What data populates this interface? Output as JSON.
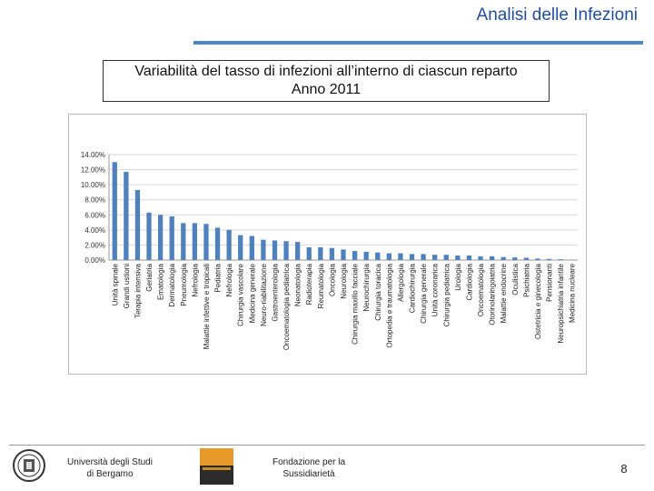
{
  "header": {
    "title": "Analisi delle Infezioni"
  },
  "slide": {
    "title_line1": "Variabilità del tasso di infezioni all’interno di ciascun reparto",
    "title_line2": "Anno 2011"
  },
  "footer": {
    "university_line1": "Università degli Studi",
    "university_line2": "di Bergamo",
    "foundation_line1": "Fondazione per la",
    "foundation_line2": "Sussidiarietà",
    "page_number": "8"
  },
  "colors": {
    "bar": "#4f81bd",
    "accent": "#1f4e9e",
    "rule": "#4a86c8"
  },
  "chart_data": {
    "type": "bar",
    "title": "",
    "xlabel": "",
    "ylabel": "",
    "ylim": [
      0,
      14
    ],
    "yticks": [
      0,
      2,
      4,
      6,
      8,
      10,
      12,
      14
    ],
    "ytick_labels": [
      "0.00%",
      "2.00%",
      "4.00%",
      "6.00%",
      "8.00%",
      "10.00%",
      "12.00%",
      "14.00%"
    ],
    "grid": true,
    "categories": [
      "Unità spinale",
      "Grandi ustioni",
      "Terapia intensiva",
      "Geriatria",
      "Ematologia",
      "Dermatologia",
      "Pneumologia",
      "Nefrologia",
      "Malattie infettive e tropicali",
      "Pediatria",
      "Nefrologia",
      "Chirurgia vascolare",
      "Medicina generale",
      "Neuro-riabilitazione",
      "Gastroenterologia",
      "Oncoematologia pediatrica",
      "Neonatologia",
      "Radioterapia",
      "Reumatologia",
      "Oncologia",
      "Neurologia",
      "Chirurgia maxillo facciale",
      "Neurochirurgia",
      "Chirurgia toracica",
      "Ortopedia e traumatologia",
      "Allergologia",
      "Cardiochirurgia",
      "Chirurgia generale",
      "Unità coronarica",
      "Chirurgia pediatrica",
      "Urologia",
      "Cardiologia",
      "Oncoematologia",
      "Otorinolaringoiatria",
      "Malattie endocrine",
      "Oculistica",
      "Psichiatria",
      "Ostetricia e ginecologia",
      "Pensionanti",
      "Neuropsichiatria infantile",
      "Medicina nucleare"
    ],
    "values": [
      13.0,
      11.7,
      9.3,
      6.3,
      6.0,
      5.8,
      4.9,
      4.9,
      4.8,
      4.3,
      4.0,
      3.3,
      3.2,
      2.7,
      2.6,
      2.5,
      2.4,
      1.7,
      1.7,
      1.6,
      1.4,
      1.2,
      1.1,
      1.0,
      0.9,
      0.9,
      0.8,
      0.8,
      0.7,
      0.7,
      0.6,
      0.6,
      0.5,
      0.5,
      0.4,
      0.35,
      0.3,
      0.2,
      0.15,
      0.1,
      0.05
    ]
  }
}
